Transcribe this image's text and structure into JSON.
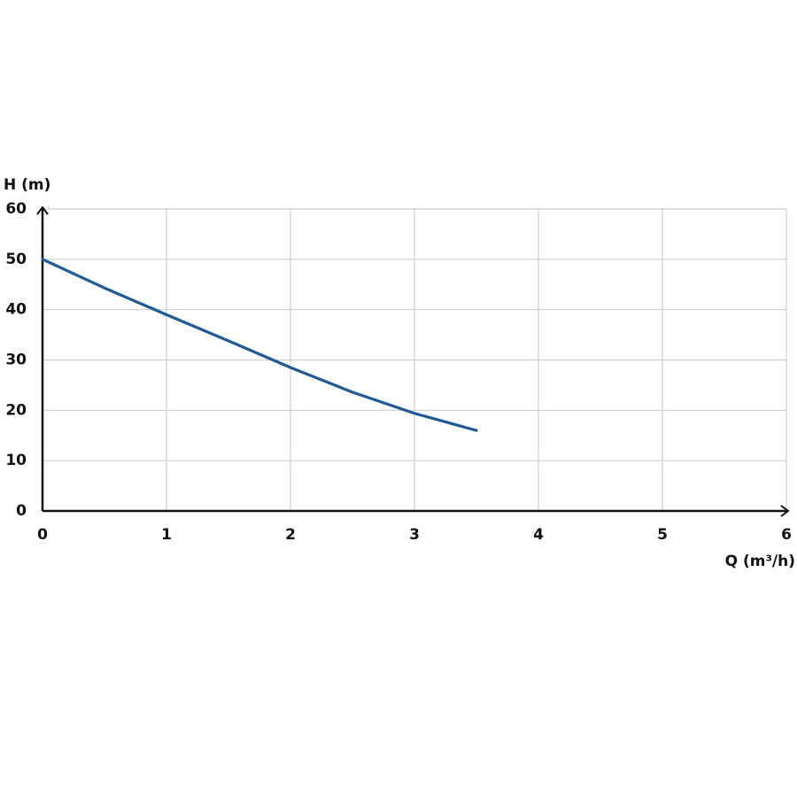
{
  "chart_data": {
    "type": "line",
    "y_label": "H (m)",
    "x_label": "Q (m³/h)",
    "x": [
      0,
      0.5,
      1,
      1.5,
      2,
      2.5,
      3,
      3.5
    ],
    "series": [
      {
        "color": "#1f5a96",
        "values": [
          50,
          44.3,
          39,
          33.8,
          28.5,
          23.6,
          19.4,
          16
        ]
      }
    ],
    "xlim": [
      0,
      6
    ],
    "xticks": [
      0,
      1,
      2,
      3,
      4,
      5,
      6
    ],
    "ylim": [
      0,
      60
    ],
    "yticks": [
      0,
      10,
      20,
      30,
      40,
      50,
      60
    ],
    "grid": true
  }
}
